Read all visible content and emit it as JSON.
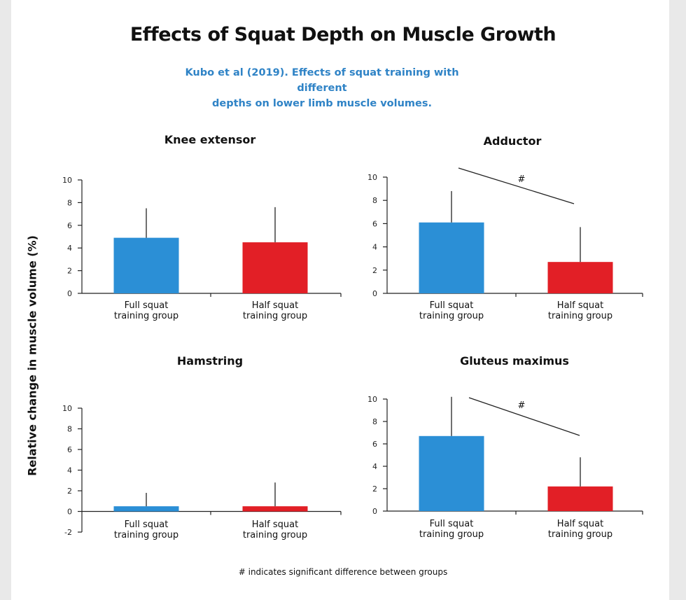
{
  "title": "Effects of Squat Depth on Muscle Growth",
  "subtitle_lines": [
    "Kubo et al (2019). Effects of squat training with different",
    "depths on lower limb muscle volumes."
  ],
  "ylabel": "Relative change in muscle volume (%)",
  "footnote": "# indicates significant difference between groups",
  "colors": {
    "full": "#2b8fd6",
    "half": "#e21f26",
    "subtitle": "#2f83c6"
  },
  "chart_data": [
    {
      "type": "bar",
      "title": "Knee extensor",
      "categories": [
        "Full squat\ntraining group",
        "Half squat\ntraining group"
      ],
      "values": [
        4.9,
        4.5
      ],
      "error_upper": [
        7.5,
        7.6
      ],
      "ylim": [
        0,
        10
      ],
      "yticks": [
        0,
        2,
        4,
        6,
        8,
        10
      ],
      "significant": false
    },
    {
      "type": "bar",
      "title": "Adductor",
      "categories": [
        "Full squat\ntraining group",
        "Half squat\ntraining group"
      ],
      "values": [
        6.1,
        2.7
      ],
      "error_upper": [
        8.8,
        5.7
      ],
      "ylim": [
        0,
        10
      ],
      "yticks": [
        0,
        2,
        4,
        6,
        8,
        10
      ],
      "significant": true,
      "significance_mark": "#"
    },
    {
      "type": "bar",
      "title": "Hamstring",
      "categories": [
        "Full squat\ntraining group",
        "Half squat\ntraining group"
      ],
      "values": [
        0.5,
        0.5
      ],
      "error_upper": [
        1.8,
        2.8
      ],
      "ylim": [
        -2,
        10
      ],
      "yticks": [
        -2,
        0,
        2,
        4,
        6,
        8,
        10
      ],
      "significant": false
    },
    {
      "type": "bar",
      "title": "Gluteus maximus",
      "categories": [
        "Full squat\ntraining group",
        "Half squat\ntraining group"
      ],
      "values": [
        6.7,
        2.2
      ],
      "error_upper": [
        10.2,
        4.8
      ],
      "ylim": [
        0,
        10
      ],
      "yticks": [
        0,
        2,
        4,
        6,
        8,
        10
      ],
      "significant": true,
      "significance_mark": "#"
    }
  ]
}
